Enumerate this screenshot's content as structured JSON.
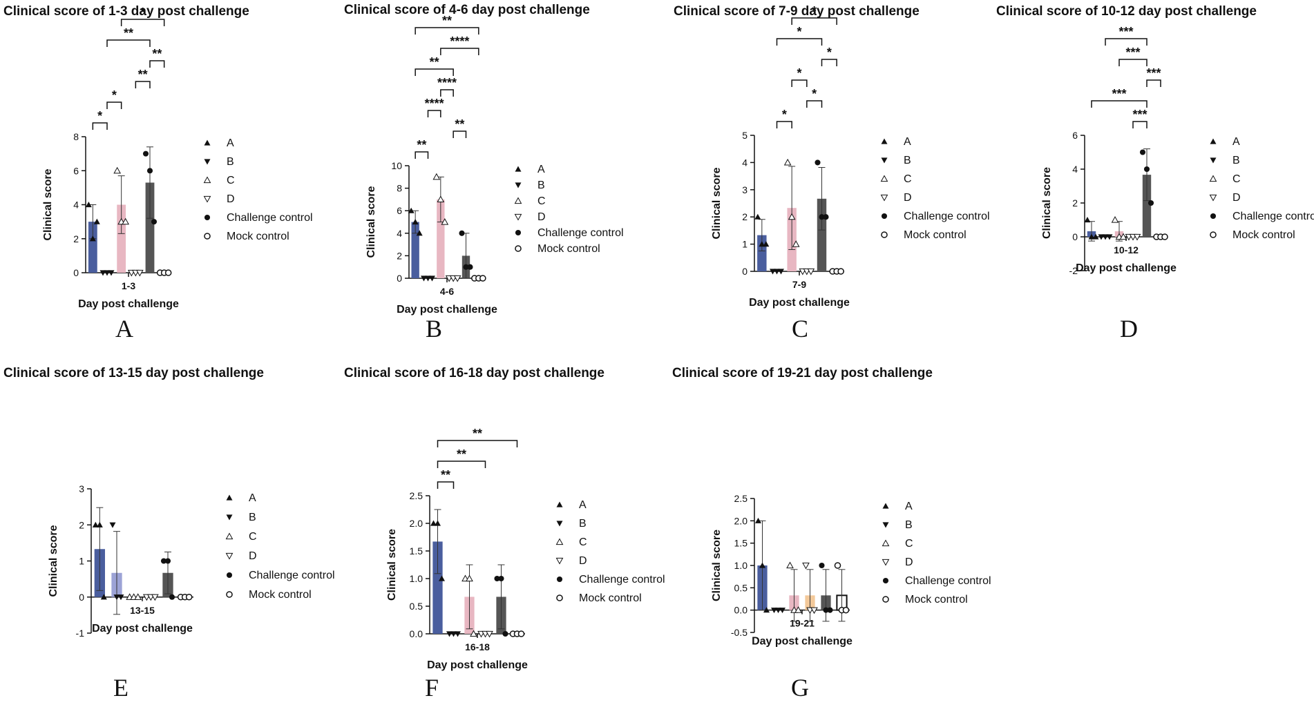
{
  "figure": {
    "panels": [
      {
        "id": "A",
        "letter": "A",
        "chart_data": {
          "type": "bar",
          "title": "Clinical score of 1-3 day post challenge",
          "xlabel": "Day post challenge",
          "ylabel": "Clinical score",
          "category": "1-3",
          "ylim": [
            0,
            8
          ],
          "yticks": [
            "0",
            "2",
            "4",
            "6",
            "8"
          ],
          "legend": [
            "A",
            "B",
            "C",
            "D",
            "Challenge control",
            "Mock control"
          ],
          "series": [
            {
              "name": "A",
              "value": 3,
              "sd": 1,
              "points": [
                4,
                2,
                3
              ],
              "color": "#4a5e9e"
            },
            {
              "name": "B",
              "value": 0,
              "sd": 0,
              "points": [
                0,
                0,
                0
              ],
              "color": "#2f2f2f"
            },
            {
              "name": "C",
              "value": 4,
              "sd": 1.7,
              "points": [
                6,
                3,
                3
              ],
              "color": "#e8b7c2"
            },
            {
              "name": "D",
              "value": 0,
              "sd": 0,
              "points": [
                0,
                0,
                0
              ],
              "color": "#2f2f2f"
            },
            {
              "name": "Challenge control",
              "value": 5.3,
              "sd": 2.1,
              "points": [
                7,
                6,
                3
              ],
              "color": "#555555"
            },
            {
              "name": "Mock control",
              "value": 0,
              "sd": 0,
              "points": [
                0,
                0,
                0
              ],
              "color": "#ffffff"
            }
          ],
          "significance": [
            {
              "from": "A",
              "to": "B",
              "label": "*"
            },
            {
              "from": "B",
              "to": "C",
              "label": "*"
            },
            {
              "from": "D",
              "to": "Challenge control",
              "label": "**"
            },
            {
              "from": "Challenge control",
              "to": "Mock control",
              "label": "**"
            },
            {
              "from": "B",
              "to": "Challenge control",
              "label": "**"
            },
            {
              "from": "C",
              "to": "Mock control",
              "label": "*"
            }
          ]
        }
      },
      {
        "id": "B",
        "letter": "B",
        "chart_data": {
          "type": "bar",
          "title": "Clinical score of 4-6 day post challenge",
          "xlabel": "Day post challenge",
          "ylabel": "Clinical score",
          "category": "4-6",
          "ylim": [
            0,
            10
          ],
          "yticks": [
            "0",
            "2",
            "4",
            "6",
            "8",
            "10"
          ],
          "legend": [
            "A",
            "B",
            "C",
            "D",
            "Challenge control",
            "Mock control"
          ],
          "series": [
            {
              "name": "A",
              "value": 5,
              "sd": 1,
              "points": [
                6,
                5,
                4
              ],
              "color": "#4a5e9e"
            },
            {
              "name": "B",
              "value": 0,
              "sd": 0,
              "points": [
                0,
                0,
                0
              ],
              "color": "#2f2f2f"
            },
            {
              "name": "C",
              "value": 7,
              "sd": 2,
              "points": [
                9,
                7,
                5
              ],
              "color": "#e8b7c2"
            },
            {
              "name": "D",
              "value": 0,
              "sd": 0,
              "points": [
                0,
                0,
                0
              ],
              "color": "#2f2f2f"
            },
            {
              "name": "Challenge control",
              "value": 2,
              "sd": 2,
              "points": [
                4,
                1,
                1
              ],
              "color": "#555555"
            },
            {
              "name": "Mock control",
              "value": 0,
              "sd": 0,
              "points": [
                0,
                0,
                0
              ],
              "color": "#ffffff"
            }
          ],
          "significance": [
            {
              "from": "A",
              "to": "B",
              "label": "**"
            },
            {
              "from": "D",
              "to": "Challenge control",
              "label": "**"
            },
            {
              "from": "B",
              "to": "C",
              "label": "****"
            },
            {
              "from": "C",
              "to": "D",
              "label": "****"
            },
            {
              "from": "A",
              "to": "D",
              "label": "**"
            },
            {
              "from": "C",
              "to": "Mock control",
              "label": "****"
            },
            {
              "from": "A",
              "to": "Mock control",
              "label": "**"
            }
          ]
        }
      },
      {
        "id": "C",
        "letter": "C",
        "chart_data": {
          "type": "bar",
          "title": "Clinical score of 7-9 day post challenge",
          "xlabel": "Day post challenge",
          "ylabel": "Clinical score",
          "category": "7-9",
          "ylim": [
            0,
            5
          ],
          "yticks": [
            "0",
            "1",
            "2",
            "3",
            "4",
            "5"
          ],
          "legend": [
            "A",
            "B",
            "C",
            "D",
            "Challenge control",
            "Mock control"
          ],
          "series": [
            {
              "name": "A",
              "value": 1.33,
              "sd": 0.58,
              "points": [
                2,
                1,
                1
              ],
              "color": "#4a5e9e"
            },
            {
              "name": "B",
              "value": 0,
              "sd": 0,
              "points": [
                0,
                0,
                0
              ],
              "color": "#2f2f2f"
            },
            {
              "name": "C",
              "value": 2.33,
              "sd": 1.53,
              "points": [
                4,
                2,
                1
              ],
              "color": "#e8b7c2"
            },
            {
              "name": "D",
              "value": 0,
              "sd": 0,
              "points": [
                0,
                0,
                0
              ],
              "color": "#2f2f2f"
            },
            {
              "name": "Challenge control",
              "value": 2.67,
              "sd": 1.15,
              "points": [
                4,
                2,
                2
              ],
              "color": "#555555"
            },
            {
              "name": "Mock control",
              "value": 0,
              "sd": 0,
              "points": [
                0,
                0,
                0
              ],
              "color": "#ffffff"
            }
          ],
          "significance": [
            {
              "from": "B",
              "to": "C",
              "label": "*"
            },
            {
              "from": "D",
              "to": "Challenge control",
              "label": "*"
            },
            {
              "from": "C",
              "to": "D",
              "label": "*"
            },
            {
              "from": "Challenge control",
              "to": "Mock control",
              "label": "*"
            },
            {
              "from": "B",
              "to": "Challenge control",
              "label": "*"
            },
            {
              "from": "C",
              "to": "Mock control",
              "label": "*"
            }
          ]
        }
      },
      {
        "id": "D",
        "letter": "D",
        "chart_data": {
          "type": "bar",
          "title": "Clinical score of 10-12 day post challenge",
          "xlabel": "Day post challenge",
          "ylabel": "Clinical score",
          "category": "10-12",
          "ylim": [
            -2,
            6
          ],
          "yticks": [
            "-2",
            "0",
            "2",
            "4",
            "6"
          ],
          "legend": [
            "A",
            "B",
            "C",
            "D",
            "Challenge control",
            "Mock control"
          ],
          "series": [
            {
              "name": "A",
              "value": 0.33,
              "sd": 0.58,
              "points": [
                1,
                0,
                0
              ],
              "color": "#4a5e9e"
            },
            {
              "name": "B",
              "value": 0,
              "sd": 0,
              "points": [
                0,
                0,
                0
              ],
              "color": "#2f2f2f"
            },
            {
              "name": "C",
              "value": 0.33,
              "sd": 0.58,
              "points": [
                1,
                0,
                0
              ],
              "color": "#e8b7c2"
            },
            {
              "name": "D",
              "value": 0,
              "sd": 0,
              "points": [
                0,
                0,
                0
              ],
              "color": "#2f2f2f"
            },
            {
              "name": "Challenge control",
              "value": 3.67,
              "sd": 1.53,
              "points": [
                5,
                4,
                2
              ],
              "color": "#555555"
            },
            {
              "name": "Mock control",
              "value": 0,
              "sd": 0,
              "points": [
                0,
                0,
                0
              ],
              "color": "#ffffff"
            }
          ],
          "significance": [
            {
              "from": "D",
              "to": "Challenge control",
              "label": "***"
            },
            {
              "from": "A",
              "to": "Challenge control",
              "label": "***"
            },
            {
              "from": "Challenge control",
              "to": "Mock control",
              "label": "***"
            },
            {
              "from": "C",
              "to": "Challenge control",
              "label": "***"
            },
            {
              "from": "B",
              "to": "Challenge control",
              "label": "***"
            }
          ]
        }
      },
      {
        "id": "E",
        "letter": "E",
        "chart_data": {
          "type": "bar",
          "title": "Clinical score of 13-15 day post challenge",
          "xlabel": "Day post challenge",
          "ylabel": "Clinical score",
          "category": "13-15",
          "ylim": [
            -1,
            3
          ],
          "yticks": [
            "-1",
            "0",
            "1",
            "2",
            "3"
          ],
          "legend": [
            "A",
            "B",
            "C",
            "D",
            "Challenge control",
            "Mock control"
          ],
          "series": [
            {
              "name": "A",
              "value": 1.33,
              "sd": 1.15,
              "points": [
                2,
                2,
                0
              ],
              "color": "#4a5e9e"
            },
            {
              "name": "B",
              "value": 0.67,
              "sd": 1.15,
              "points": [
                2,
                0,
                0
              ],
              "color": "#9ca3d6"
            },
            {
              "name": "C",
              "value": 0,
              "sd": 0,
              "points": [
                0,
                0,
                0
              ],
              "color": "#2f2f2f"
            },
            {
              "name": "D",
              "value": 0,
              "sd": 0,
              "points": [
                0,
                0,
                0
              ],
              "color": "#2f2f2f"
            },
            {
              "name": "Challenge control",
              "value": 0.67,
              "sd": 0.58,
              "points": [
                1,
                1,
                0
              ],
              "color": "#555555"
            },
            {
              "name": "Mock control",
              "value": 0,
              "sd": 0,
              "points": [
                0,
                0,
                0
              ],
              "color": "#ffffff"
            }
          ],
          "significance": []
        }
      },
      {
        "id": "F",
        "letter": "F",
        "chart_data": {
          "type": "bar",
          "title": "Clinical score of 16-18 day post challenge",
          "xlabel": "Day post challenge",
          "ylabel": "Clinical score",
          "category": "16-18",
          "ylim": [
            0,
            2.5
          ],
          "yticks": [
            "0.0",
            "0.5",
            "1.0",
            "1.5",
            "2.0",
            "2.5"
          ],
          "legend": [
            "A",
            "B",
            "C",
            "D",
            "Challenge control",
            "Mock control"
          ],
          "series": [
            {
              "name": "A",
              "value": 1.67,
              "sd": 0.58,
              "points": [
                2,
                2,
                1
              ],
              "color": "#4a5e9e"
            },
            {
              "name": "B",
              "value": 0,
              "sd": 0,
              "points": [
                0,
                0,
                0
              ],
              "color": "#2f2f2f"
            },
            {
              "name": "C",
              "value": 0.67,
              "sd": 0.58,
              "points": [
                1,
                1,
                0
              ],
              "color": "#e8b7c2"
            },
            {
              "name": "D",
              "value": 0,
              "sd": 0,
              "points": [
                0,
                0,
                0
              ],
              "color": "#2f2f2f"
            },
            {
              "name": "Challenge control",
              "value": 0.67,
              "sd": 0.58,
              "points": [
                1,
                1,
                0
              ],
              "color": "#555555"
            },
            {
              "name": "Mock control",
              "value": 0,
              "sd": 0,
              "points": [
                0,
                0,
                0
              ],
              "color": "#ffffff"
            }
          ],
          "significance": [
            {
              "from": "A",
              "to": "B",
              "label": "**"
            },
            {
              "from": "A",
              "to": "D",
              "label": "**"
            },
            {
              "from": "A",
              "to": "Mock control",
              "label": "**"
            }
          ]
        }
      },
      {
        "id": "G",
        "letter": "G",
        "chart_data": {
          "type": "bar",
          "title": "Clinical score of 19-21 day post challenge",
          "xlabel": "Day post challenge",
          "ylabel": "Clinical score",
          "category": "19-21",
          "ylim": [
            -0.5,
            2.5
          ],
          "yticks": [
            "-0.5",
            "0.0",
            "0.5",
            "1.0",
            "1.5",
            "2.0",
            "2.5"
          ],
          "legend": [
            "A",
            "B",
            "C",
            "D",
            "Challenge control",
            "Mock control"
          ],
          "series": [
            {
              "name": "A",
              "value": 1,
              "sd": 1,
              "points": [
                2,
                1,
                0
              ],
              "color": "#4a5e9e"
            },
            {
              "name": "B",
              "value": 0,
              "sd": 0,
              "points": [
                0,
                0,
                0
              ],
              "color": "#2f2f2f"
            },
            {
              "name": "C",
              "value": 0.33,
              "sd": 0.58,
              "points": [
                1,
                0,
                0
              ],
              "color": "#e8b7c2"
            },
            {
              "name": "D",
              "value": 0.33,
              "sd": 0.58,
              "points": [
                1,
                0,
                0
              ],
              "color": "#f3c99a"
            },
            {
              "name": "Challenge control",
              "value": 0.33,
              "sd": 0.58,
              "points": [
                1,
                0,
                0
              ],
              "color": "#555555"
            },
            {
              "name": "Mock control",
              "value": 0.33,
              "sd": 0.58,
              "points": [
                1,
                0,
                0
              ],
              "color": "#ffffff"
            }
          ],
          "significance": []
        }
      }
    ]
  }
}
